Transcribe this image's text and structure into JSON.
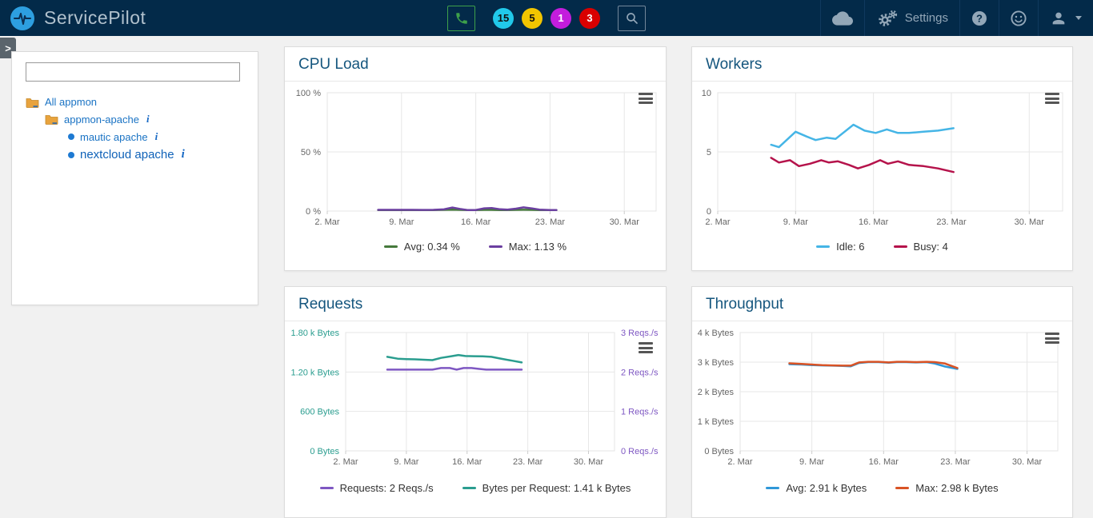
{
  "navbar": {
    "brand": "ServicePilot",
    "settings_label": "Settings",
    "background": "#032a49",
    "badges": [
      {
        "count": "15",
        "color": "#21c9ea",
        "text_color": "#111111"
      },
      {
        "count": "5",
        "color": "#f2c500",
        "text_color": "#111111"
      },
      {
        "count": "1",
        "color": "#c31ddd",
        "text_color": "#ffffff"
      },
      {
        "count": "3",
        "color": "#d90000",
        "text_color": "#ffffff"
      }
    ]
  },
  "sidebar": {
    "search_value": "",
    "search_placeholder": "",
    "tree": {
      "root_label": "All appmon",
      "group_label": "appmon-apache",
      "leaves": [
        {
          "label": "mautic apache",
          "selected": false
        },
        {
          "label": "nextcloud apache",
          "selected": true
        }
      ]
    }
  },
  "chart_data": [
    {
      "id": "cpu-load",
      "type": "line",
      "title": "CPU Load",
      "xlim": [
        2,
        33
      ],
      "grid": true,
      "legend_position": "bottom",
      "xticks": [
        {
          "v": 2,
          "label": "2. Mar"
        },
        {
          "v": 9,
          "label": "9. Mar"
        },
        {
          "v": 16,
          "label": "16. Mar"
        },
        {
          "v": 23,
          "label": "23. Mar"
        },
        {
          "v": 30,
          "label": "30. Mar"
        }
      ],
      "yaxes": [
        {
          "side": "left",
          "min": 0,
          "max": 100,
          "label_color": "#666666",
          "ticks": [
            {
              "v": 0,
              "label": "0 %"
            },
            {
              "v": 50,
              "label": "50 %"
            },
            {
              "v": 100,
              "label": "100 %"
            }
          ]
        }
      ],
      "series": [
        {
          "name": "Avg",
          "legend": "Avg: 0.34 %",
          "color": "#45793c",
          "yaxis": 0,
          "points": [
            [
              6.8,
              0.9
            ],
            [
              8,
              0.9
            ],
            [
              9,
              0.9
            ],
            [
              10,
              0.9
            ],
            [
              11,
              0.85
            ],
            [
              12,
              0.9
            ],
            [
              13,
              1.0
            ],
            [
              13.8,
              1.2
            ],
            [
              14.5,
              1.0
            ],
            [
              15.2,
              0.85
            ],
            [
              16,
              0.85
            ],
            [
              16.8,
              1.0
            ],
            [
              17.5,
              1.0
            ],
            [
              18.3,
              0.9
            ],
            [
              19,
              0.9
            ],
            [
              19.8,
              1.0
            ],
            [
              20.5,
              1.1
            ],
            [
              21.3,
              1.0
            ],
            [
              22,
              0.9
            ],
            [
              23,
              0.85
            ],
            [
              23.6,
              0.85
            ]
          ]
        },
        {
          "name": "Max",
          "legend": "Max: 1.13 %",
          "color": "#6b3fa0",
          "yaxis": 0,
          "points": [
            [
              6.8,
              1.0
            ],
            [
              8,
              1.0
            ],
            [
              9,
              1.0
            ],
            [
              10,
              1.0
            ],
            [
              11,
              0.95
            ],
            [
              12,
              1.0
            ],
            [
              13,
              1.4
            ],
            [
              13.8,
              3.0
            ],
            [
              14.5,
              1.8
            ],
            [
              15.2,
              0.9
            ],
            [
              16,
              0.9
            ],
            [
              16.8,
              2.3
            ],
            [
              17.5,
              2.6
            ],
            [
              18.3,
              1.5
            ],
            [
              19,
              1.2
            ],
            [
              19.8,
              2.0
            ],
            [
              20.5,
              3.1
            ],
            [
              21.3,
              2.2
            ],
            [
              22,
              1.2
            ],
            [
              23,
              0.9
            ],
            [
              23.6,
              0.9
            ]
          ]
        }
      ]
    },
    {
      "id": "workers",
      "type": "line",
      "title": "Workers",
      "xlim": [
        2,
        33
      ],
      "grid": true,
      "legend_position": "bottom",
      "xticks": [
        {
          "v": 2,
          "label": "2. Mar"
        },
        {
          "v": 9,
          "label": "9. Mar"
        },
        {
          "v": 16,
          "label": "16. Mar"
        },
        {
          "v": 23,
          "label": "23. Mar"
        },
        {
          "v": 30,
          "label": "30. Mar"
        }
      ],
      "yaxes": [
        {
          "side": "left",
          "min": 0,
          "max": 10,
          "label_color": "#666666",
          "ticks": [
            {
              "v": 0,
              "label": "0"
            },
            {
              "v": 5,
              "label": "5"
            },
            {
              "v": 10,
              "label": "10"
            }
          ]
        }
      ],
      "series": [
        {
          "name": "Idle",
          "legend": "Idle: 6",
          "color": "#45b5e6",
          "yaxis": 0,
          "points": [
            [
              6.8,
              5.6
            ],
            [
              7.5,
              5.4
            ],
            [
              9,
              6.7
            ],
            [
              10,
              6.3
            ],
            [
              10.8,
              6.0
            ],
            [
              11.8,
              6.2
            ],
            [
              12.6,
              6.1
            ],
            [
              14.2,
              7.3
            ],
            [
              15.2,
              6.8
            ],
            [
              16.2,
              6.6
            ],
            [
              17.2,
              6.9
            ],
            [
              18.2,
              6.6
            ],
            [
              19.2,
              6.6
            ],
            [
              20.5,
              6.7
            ],
            [
              21.8,
              6.8
            ],
            [
              23.2,
              7.0
            ]
          ]
        },
        {
          "name": "Busy",
          "legend": "Busy: 4",
          "color": "#b5134b",
          "yaxis": 0,
          "points": [
            [
              6.8,
              4.5
            ],
            [
              7.5,
              4.1
            ],
            [
              8.5,
              4.3
            ],
            [
              9.3,
              3.8
            ],
            [
              10.3,
              4.0
            ],
            [
              11.3,
              4.3
            ],
            [
              12,
              4.1
            ],
            [
              12.8,
              4.2
            ],
            [
              13.8,
              3.9
            ],
            [
              14.6,
              3.6
            ],
            [
              15.6,
              3.9
            ],
            [
              16.6,
              4.3
            ],
            [
              17.3,
              4.0
            ],
            [
              18.2,
              4.2
            ],
            [
              19.2,
              3.9
            ],
            [
              20.5,
              3.8
            ],
            [
              21.8,
              3.6
            ],
            [
              23.2,
              3.3
            ]
          ]
        }
      ]
    },
    {
      "id": "requests",
      "type": "line",
      "title": "Requests",
      "xlim": [
        2,
        33
      ],
      "grid": true,
      "legend_position": "bottom",
      "xticks": [
        {
          "v": 2,
          "label": "2. Mar"
        },
        {
          "v": 9,
          "label": "9. Mar"
        },
        {
          "v": 16,
          "label": "16. Mar"
        },
        {
          "v": 23,
          "label": "23. Mar"
        },
        {
          "v": 30,
          "label": "30. Mar"
        }
      ],
      "yaxes": [
        {
          "side": "left",
          "min": 0,
          "max": 1800,
          "label_color": "#2a9d8f",
          "ticks": [
            {
              "v": 0,
              "label": "0 Bytes"
            },
            {
              "v": 600,
              "label": "600 Bytes"
            },
            {
              "v": 1200,
              "label": "1.20 k Bytes"
            },
            {
              "v": 1800,
              "label": "1.80 k Bytes"
            }
          ]
        },
        {
          "side": "right",
          "min": 0,
          "max": 3,
          "label_color": "#7e57c2",
          "ticks": [
            {
              "v": 0,
              "label": "0 Reqs./s"
            },
            {
              "v": 1,
              "label": "1 Reqs./s"
            },
            {
              "v": 2,
              "label": "2 Reqs./s"
            },
            {
              "v": 3,
              "label": "3 Reqs./s"
            }
          ]
        }
      ],
      "series": [
        {
          "name": "Requests",
          "legend": "Requests: 2 Reqs./s",
          "color": "#7e57c2",
          "yaxis": 1,
          "points": [
            [
              6.8,
              2.06
            ],
            [
              8,
              2.06
            ],
            [
              9,
              2.06
            ],
            [
              10,
              2.06
            ],
            [
              11,
              2.06
            ],
            [
              12,
              2.06
            ],
            [
              13,
              2.1
            ],
            [
              14,
              2.1
            ],
            [
              14.8,
              2.06
            ],
            [
              15.6,
              2.1
            ],
            [
              16.5,
              2.1
            ],
            [
              17.3,
              2.08
            ],
            [
              18.2,
              2.06
            ],
            [
              19.5,
              2.06
            ],
            [
              21,
              2.06
            ],
            [
              22.3,
              2.06
            ]
          ]
        },
        {
          "name": "Bytes per Request",
          "legend": "Bytes per Request: 1.41 k Bytes",
          "color": "#2a9d8f",
          "yaxis": 0,
          "points": [
            [
              6.8,
              1430
            ],
            [
              8,
              1402
            ],
            [
              9,
              1395
            ],
            [
              10,
              1392
            ],
            [
              11,
              1387
            ],
            [
              12,
              1380
            ],
            [
              13,
              1415
            ],
            [
              14.2,
              1440
            ],
            [
              15,
              1458
            ],
            [
              15.8,
              1442
            ],
            [
              16.8,
              1440
            ],
            [
              17.8,
              1437
            ],
            [
              18.8,
              1430
            ],
            [
              20,
              1400
            ],
            [
              21.2,
              1372
            ],
            [
              22.3,
              1345
            ]
          ]
        }
      ]
    },
    {
      "id": "throughput",
      "type": "line",
      "title": "Throughput",
      "xlim": [
        2,
        33
      ],
      "grid": true,
      "legend_position": "bottom",
      "xticks": [
        {
          "v": 2,
          "label": "2. Mar"
        },
        {
          "v": 9,
          "label": "9. Mar"
        },
        {
          "v": 16,
          "label": "16. Mar"
        },
        {
          "v": 23,
          "label": "23. Mar"
        },
        {
          "v": 30,
          "label": "30. Mar"
        }
      ],
      "yaxes": [
        {
          "side": "left",
          "min": 0,
          "max": 4000,
          "label_color": "#666666",
          "ticks": [
            {
              "v": 0,
              "label": "0 Bytes"
            },
            {
              "v": 1000,
              "label": "1 k Bytes"
            },
            {
              "v": 2000,
              "label": "2 k Bytes"
            },
            {
              "v": 3000,
              "label": "3 k Bytes"
            },
            {
              "v": 4000,
              "label": "4 k Bytes"
            }
          ]
        }
      ],
      "series": [
        {
          "name": "Avg",
          "legend": "Avg: 2.91 k Bytes",
          "color": "#2f97d8",
          "yaxis": 0,
          "points": [
            [
              6.8,
              2930
            ],
            [
              8,
              2920
            ],
            [
              9,
              2900
            ],
            [
              10,
              2890
            ],
            [
              11,
              2880
            ],
            [
              12,
              2870
            ],
            [
              12.8,
              2860
            ],
            [
              13.6,
              2970
            ],
            [
              14.5,
              3000
            ],
            [
              15.5,
              3000
            ],
            [
              16.5,
              2980
            ],
            [
              17.3,
              3000
            ],
            [
              18.2,
              3000
            ],
            [
              19.2,
              2990
            ],
            [
              20.2,
              3000
            ],
            [
              21,
              2950
            ],
            [
              22,
              2850
            ],
            [
              23.2,
              2770
            ]
          ]
        },
        {
          "name": "Max",
          "legend": "Max: 2.98 k Bytes",
          "color": "#d95325",
          "yaxis": 0,
          "points": [
            [
              6.8,
              2960
            ],
            [
              8,
              2940
            ],
            [
              9,
              2920
            ],
            [
              10,
              2900
            ],
            [
              11,
              2890
            ],
            [
              12,
              2880
            ],
            [
              12.8,
              2880
            ],
            [
              13.6,
              2990
            ],
            [
              14.5,
              3010
            ],
            [
              15.5,
              3010
            ],
            [
              16.5,
              2990
            ],
            [
              17.3,
              3010
            ],
            [
              18.2,
              3010
            ],
            [
              19.2,
              3000
            ],
            [
              20.2,
              3010
            ],
            [
              21,
              3000
            ],
            [
              22,
              2950
            ],
            [
              23.2,
              2800
            ]
          ]
        }
      ]
    }
  ]
}
